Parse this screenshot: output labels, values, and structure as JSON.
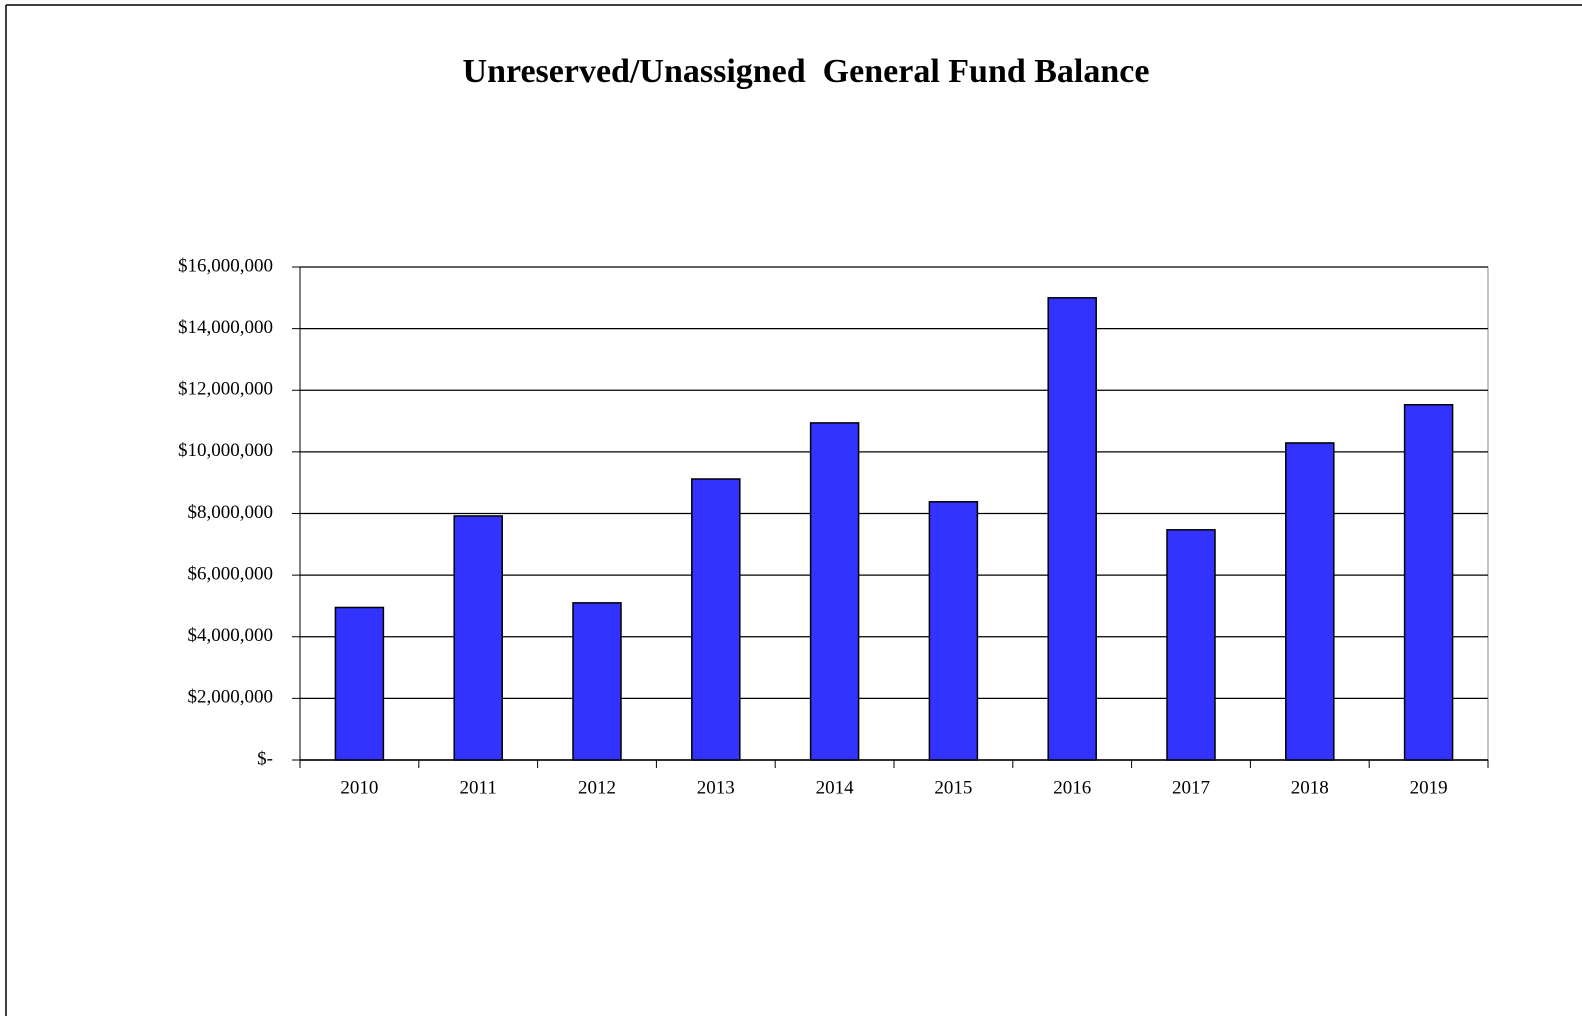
{
  "chart_data": {
    "type": "bar",
    "title": "Unreserved/Unassigned  General Fund Balance",
    "categories": [
      "2010",
      "2011",
      "2012",
      "2013",
      "2014",
      "2015",
      "2016",
      "2017",
      "2018",
      "2019"
    ],
    "values": [
      4950000,
      7920000,
      5100000,
      9120000,
      10940000,
      8380000,
      15000000,
      7470000,
      10290000,
      11530000
    ],
    "color": "#3333ff",
    "ylim": [
      0,
      16000000
    ],
    "yticks": [
      {
        "value": 0,
        "label": "$-"
      },
      {
        "value": 2000000,
        "label": "$2,000,000"
      },
      {
        "value": 4000000,
        "label": "$4,000,000"
      },
      {
        "value": 6000000,
        "label": "$6,000,000"
      },
      {
        "value": 8000000,
        "label": "$8,000,000"
      },
      {
        "value": 10000000,
        "label": "$10,000,000"
      },
      {
        "value": 12000000,
        "label": "$12,000,000"
      },
      {
        "value": 14000000,
        "label": "$14,000,000"
      },
      {
        "value": 16000000,
        "label": "$16,000,000"
      }
    ],
    "grid": true
  }
}
